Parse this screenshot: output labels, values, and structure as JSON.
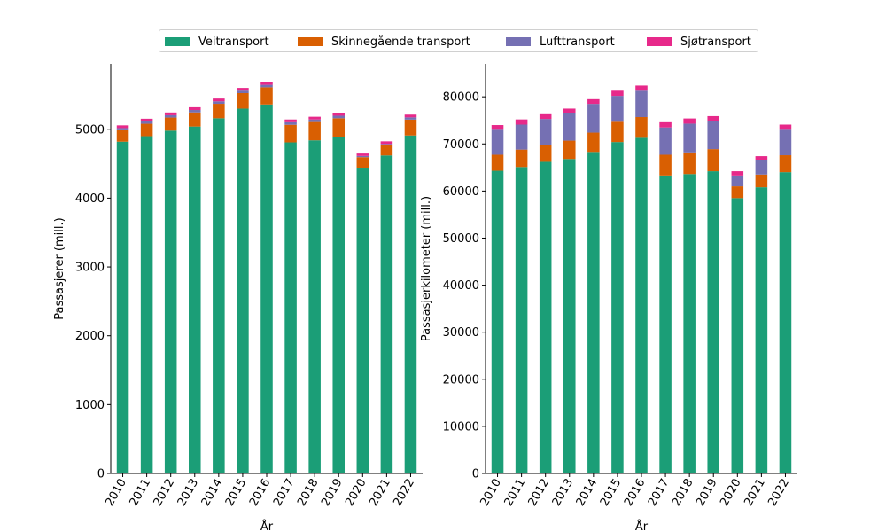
{
  "colors": {
    "Veitransport": "#1b9e77",
    "Skinnegående transport": "#d95f02",
    "Lufttransport": "#7570b3",
    "Sjøtransport": "#e7298a"
  },
  "legend": {
    "items": [
      {
        "label": "Veitransport",
        "color": "#1b9e77"
      },
      {
        "label": "Skinnegående transport",
        "color": "#d95f02"
      },
      {
        "label": "Lufttransport",
        "color": "#7570b3"
      },
      {
        "label": "Sjøtransport",
        "color": "#e7298a"
      }
    ],
    "placement": "top-center"
  },
  "chart_data": [
    {
      "type": "bar",
      "stacked": true,
      "title": "",
      "xlabel": "År",
      "ylabel": "Passasjerer (mill.)",
      "ylim": [
        0,
        5950
      ],
      "yticks": [
        0,
        1000,
        2000,
        3000,
        4000,
        5000
      ],
      "categories": [
        "2010",
        "2011",
        "2012",
        "2013",
        "2014",
        "2015",
        "2016",
        "2017",
        "2018",
        "2019",
        "2020",
        "2021",
        "2022"
      ],
      "series": [
        {
          "name": "Veitransport",
          "values": [
            4820,
            4900,
            4980,
            5040,
            5160,
            5300,
            5360,
            4810,
            4840,
            4890,
            4430,
            4620,
            4910
          ]
        },
        {
          "name": "Skinnegående transport",
          "values": [
            165,
            180,
            190,
            205,
            210,
            225,
            250,
            255,
            265,
            270,
            165,
            145,
            230
          ]
        },
        {
          "name": "Lufttransport",
          "values": [
            32,
            33,
            34,
            35,
            36,
            36,
            36,
            37,
            37,
            37,
            18,
            22,
            33
          ]
        },
        {
          "name": "Sjøtransport",
          "values": [
            40,
            40,
            40,
            40,
            40,
            40,
            40,
            40,
            40,
            40,
            35,
            38,
            40
          ]
        }
      ]
    },
    {
      "type": "bar",
      "stacked": true,
      "title": "",
      "xlabel": "År",
      "ylabel": "Passasjerkilometer (mill.)",
      "ylim": [
        0,
        87000
      ],
      "yticks": [
        0,
        10000,
        20000,
        30000,
        40000,
        50000,
        60000,
        70000,
        80000
      ],
      "categories": [
        "2010",
        "2011",
        "2012",
        "2013",
        "2014",
        "2015",
        "2016",
        "2017",
        "2018",
        "2019",
        "2020",
        "2021",
        "2022"
      ],
      "series": [
        {
          "name": "Veitransport",
          "values": [
            64300,
            65100,
            66200,
            66800,
            68300,
            70400,
            71300,
            63300,
            63600,
            64200,
            58500,
            60800,
            64000
          ]
        },
        {
          "name": "Skinnegående transport",
          "values": [
            3400,
            3700,
            3500,
            3900,
            4100,
            4300,
            4400,
            4400,
            4600,
            4700,
            2500,
            2700,
            3600
          ]
        },
        {
          "name": "Lufttransport",
          "values": [
            5300,
            5300,
            5600,
            5800,
            6100,
            5500,
            5600,
            5800,
            6100,
            5900,
            2300,
            3100,
            5400
          ]
        },
        {
          "name": "Sjøtransport",
          "values": [
            1000,
            1100,
            1000,
            1000,
            1000,
            1100,
            1100,
            1100,
            1100,
            1100,
            900,
            800,
            1100
          ]
        }
      ]
    }
  ]
}
